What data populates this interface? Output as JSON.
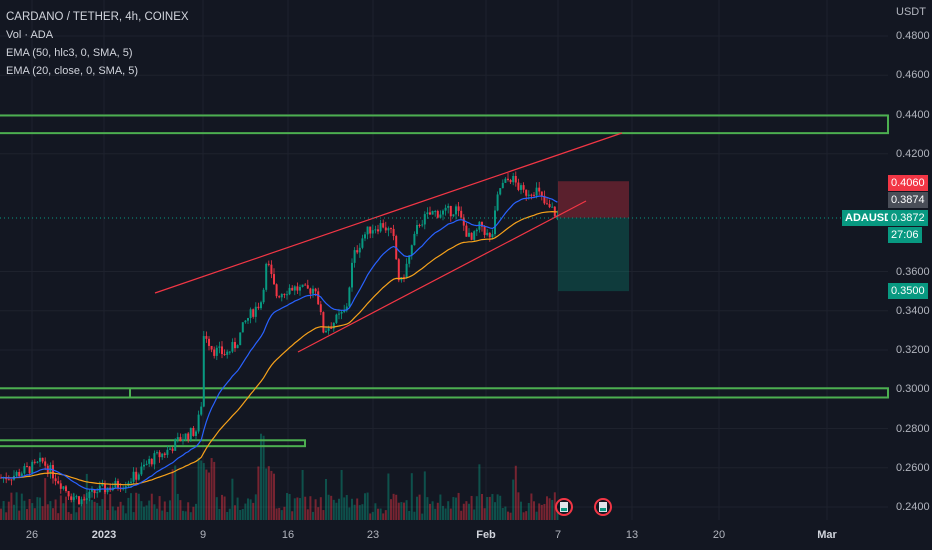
{
  "legend": {
    "title": "CARDANO / TETHER, 4h, COINEX",
    "vol": "Vol · ADA",
    "ema50": "EMA (50, hlc3, 0, SMA, 5)",
    "ema20": "EMA (20, close, 0, SMA, 5)"
  },
  "price_axis": {
    "unit": "USDT",
    "ticks": [
      "0.4800",
      "0.4600",
      "0.4400",
      "0.4200",
      "0.3600",
      "0.3400",
      "0.3200",
      "0.3000",
      "0.2800",
      "0.2600",
      "0.2400"
    ]
  },
  "time_axis": {
    "ticks": [
      "26",
      "2023",
      "9",
      "16",
      "23",
      "Feb",
      "7",
      "13",
      "20",
      "Mar"
    ]
  },
  "labels": {
    "target": "0.4060",
    "entry": "0.3874",
    "symbol": "ADAUSDT",
    "last_price": "0.3872",
    "countdown": "27:06",
    "stop": "0.3500"
  },
  "colors": {
    "background": "#131722",
    "up": "#089981",
    "down": "#f23645",
    "ema50": "#f7a21b",
    "ema20": "#2962ff",
    "zone": "#4caf50",
    "trendline": "#f23645"
  },
  "chart_data": {
    "type": "candlestick",
    "symbol": "ADAUSDT",
    "timeframe": "4h",
    "ylim": [
      0.235,
      0.49
    ],
    "approx_close_path": [
      {
        "x": "Dec 25",
        "close": 0.255
      },
      {
        "x": "Dec 27",
        "close": 0.262
      },
      {
        "x": "Dec 30",
        "close": 0.245
      },
      {
        "x": "Jan 1",
        "close": 0.25
      },
      {
        "x": "Jan 4",
        "close": 0.258
      },
      {
        "x": "Jan 6",
        "close": 0.268
      },
      {
        "x": "Jan 8",
        "close": 0.278
      },
      {
        "x": "Jan 9",
        "close": 0.33
      },
      {
        "x": "Jan 11",
        "close": 0.322
      },
      {
        "x": "Jan 14",
        "close": 0.362
      },
      {
        "x": "Jan 17",
        "close": 0.35
      },
      {
        "x": "Jan 19",
        "close": 0.332
      },
      {
        "x": "Jan 21",
        "close": 0.373
      },
      {
        "x": "Jan 24",
        "close": 0.385
      },
      {
        "x": "Jan 26",
        "close": 0.36
      },
      {
        "x": "Jan 29",
        "close": 0.39
      },
      {
        "x": "Feb 1",
        "close": 0.38
      },
      {
        "x": "Feb 3",
        "close": 0.405
      },
      {
        "x": "Feb 6",
        "close": 0.39
      },
      {
        "x": "Feb 7",
        "close": 0.387
      }
    ],
    "horizontal_zones": [
      0.4395,
      0.4305,
      0.3005,
      0.2958,
      0.274,
      0.271
    ],
    "position": {
      "entry": 0.3874,
      "target": 0.406,
      "stop": 0.35
    }
  }
}
